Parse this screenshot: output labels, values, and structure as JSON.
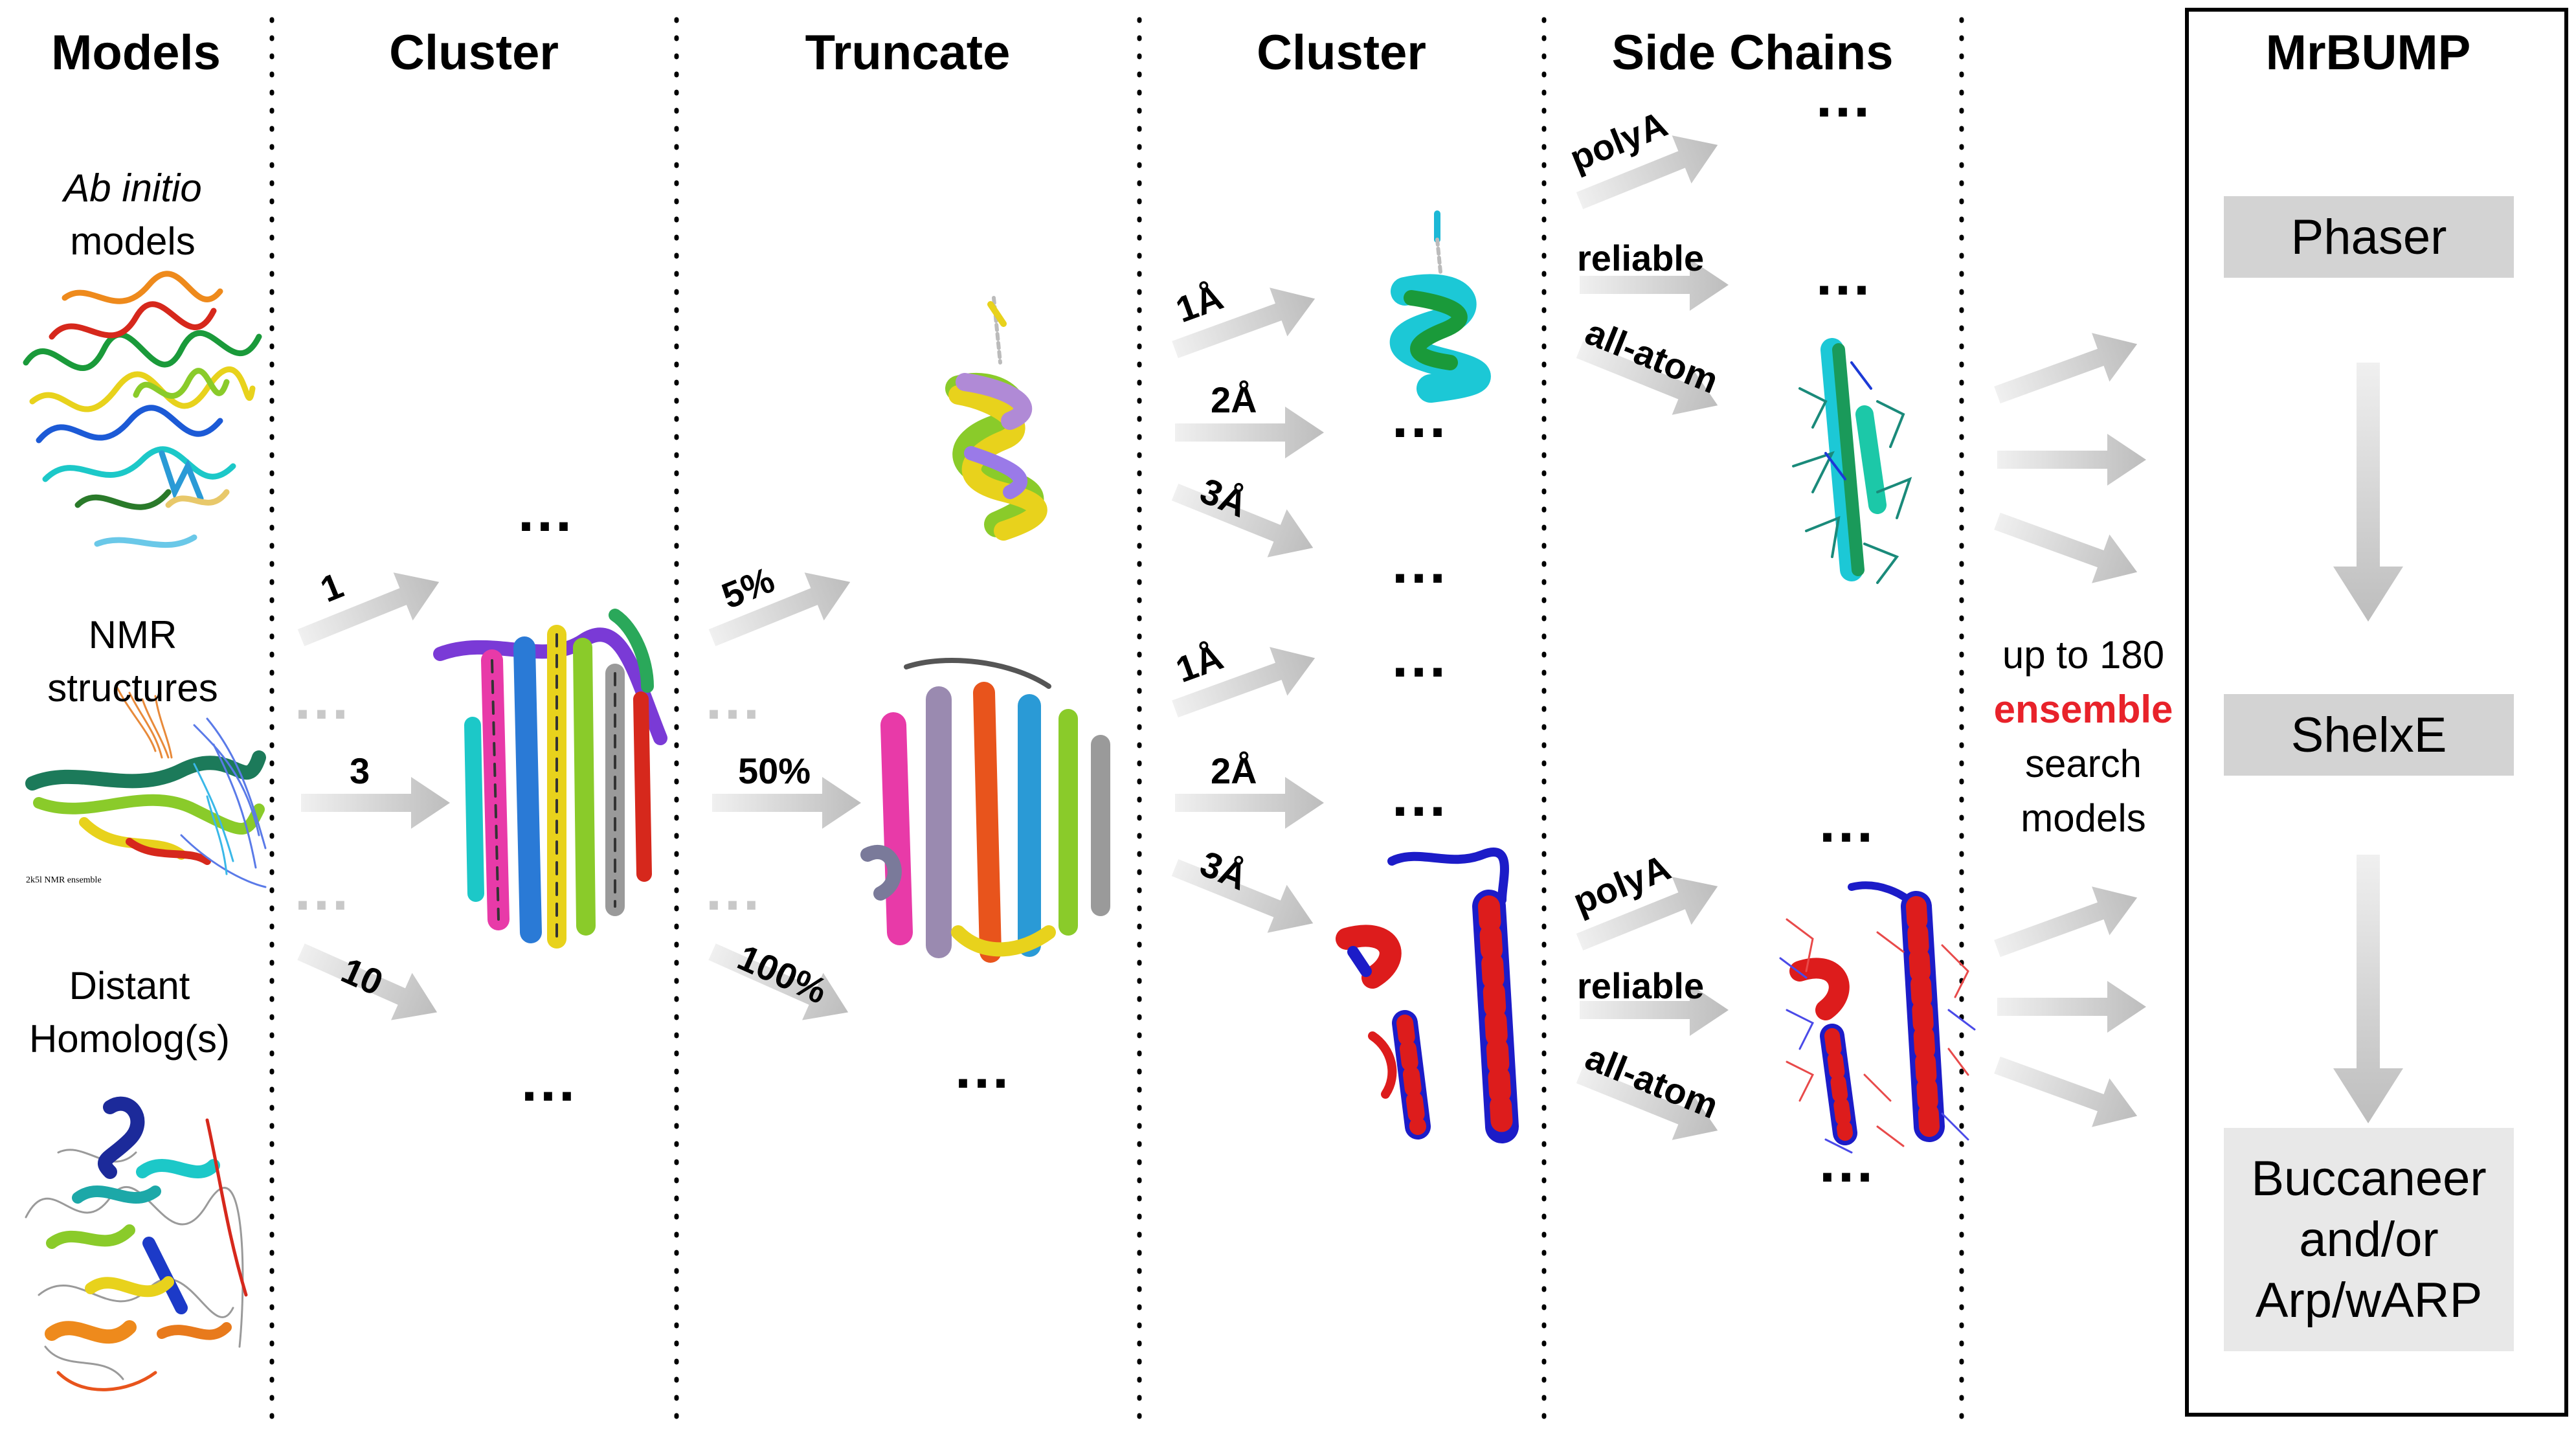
{
  "headers": {
    "models": "Models",
    "cluster1": "Cluster",
    "truncate": "Truncate",
    "cluster2": "Cluster",
    "side_chains": "Side Chains",
    "mrbump": "MrBUMP"
  },
  "models_column": {
    "ab_initio_line1": "Ab initio",
    "ab_initio_line2": "models",
    "nmr_line1": "NMR",
    "nmr_line2": "structures",
    "nmr_caption": "2k5l NMR ensemble",
    "homolog_line1": "Distant",
    "homolog_line2": "Homolog(s)"
  },
  "cluster_arrows": [
    "1",
    "3",
    "10"
  ],
  "truncate_arrows": [
    "5%",
    "50%",
    "100%"
  ],
  "cluster2_arrows": [
    "1Å",
    "2Å",
    "3Å",
    "1Å",
    "2Å",
    "3Å"
  ],
  "side_chain_arrows": [
    "polyA",
    "reliable",
    "all-atom",
    "polyA",
    "reliable",
    "all-atom"
  ],
  "ellipsis": "...",
  "output_text": {
    "line1": "up to 180",
    "line2": "ensemble",
    "line3": "search",
    "line4": "models"
  },
  "mrbump_steps": {
    "phaser": "Phaser",
    "shelxe": "ShelxE",
    "build_line1": "Buccaneer",
    "build_line2": "and/or",
    "build_line3": "Arp/wARP"
  },
  "colors": {
    "arrow": "#c8c8c8",
    "highlight": "#e8222a",
    "box": "#d3d3d3",
    "box_light": "#e8e8e8",
    "helix_red": "#dd1c1c",
    "helix_blue": "#1c1cc8"
  }
}
